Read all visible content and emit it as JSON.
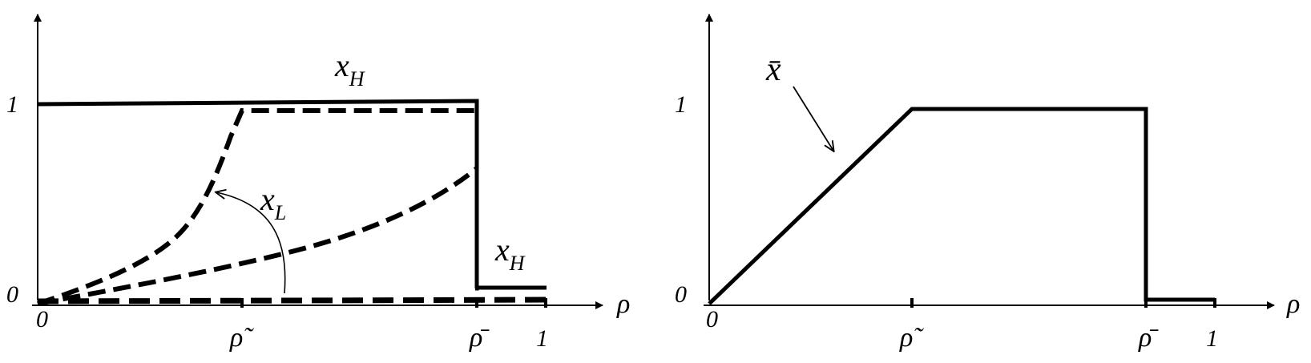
{
  "left_panel": {
    "x_axis_label": "ρ",
    "y_tick_one": "1",
    "y_tick_zero": "0",
    "x_tick_zero": "0",
    "x_tick_rho_tilde": "ρ̃",
    "x_tick_rho_bar": "ρ̄",
    "x_tick_one": "1",
    "curve_label_top": {
      "main": "x",
      "sub": "H"
    },
    "curve_label_bottom": {
      "main": "x",
      "sub": "H"
    },
    "curve_label_low": {
      "main": "x",
      "sub": "L"
    }
  },
  "right_panel": {
    "x_axis_label": "ρ",
    "y_tick_one": "1",
    "y_tick_zero": "0",
    "x_tick_zero": "0",
    "x_tick_rho_tilde": "ρ̃",
    "x_tick_rho_bar": "ρ̄",
    "x_tick_one": "1",
    "curve_label": "x̄"
  },
  "colors": {
    "ink": "#000000",
    "background": "#ffffff"
  }
}
